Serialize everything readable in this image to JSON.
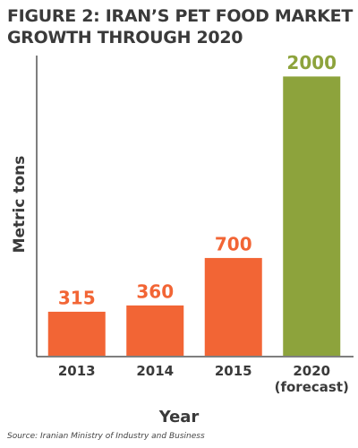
{
  "chart_data": {
    "type": "bar",
    "title": "FIGURE 2: IRAN’S PET FOOD MARKET\nGROWTH THROUGH 2020",
    "categories": [
      "2013",
      "2014",
      "2015",
      "2020\n(forecast)"
    ],
    "values": [
      315,
      360,
      700,
      2000
    ],
    "colors": [
      "#f26535",
      "#f26535",
      "#f26535",
      "#8da33c"
    ],
    "ylim": [
      0,
      2150
    ],
    "y_label": "Metric tons",
    "x_label": "Year",
    "source": "Source: Iranian Ministry of Industry and Business"
  }
}
